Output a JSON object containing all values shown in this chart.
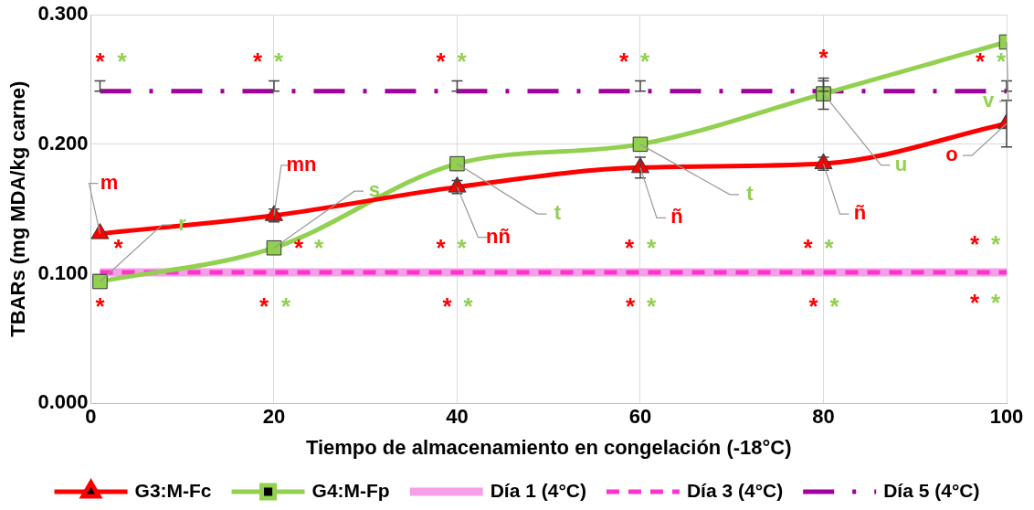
{
  "chart_data": {
    "type": "line",
    "xlabel": "Tiempo de almacenamiento en congelación (-18°C)",
    "ylabel": "TBARs (mg MDA/kg carne)",
    "x": [
      1,
      20,
      40,
      60,
      80,
      100
    ],
    "xlim": [
      0,
      100
    ],
    "xticks": [
      0,
      20,
      40,
      60,
      80,
      100
    ],
    "ylim": [
      0,
      0.3
    ],
    "yticks": [
      {
        "value": 0,
        "label": "0.000"
      },
      {
        "value": 0.1,
        "label": "0.100"
      },
      {
        "value": 0.2,
        "label": "0.200"
      },
      {
        "value": 0.3,
        "label": "0.300"
      }
    ],
    "grid": true,
    "legend": "bottom",
    "series": [
      {
        "name": "G3:M-Fc",
        "color": "#ff0000",
        "marker": "triangle",
        "line_style": "solid",
        "values": [
          0.131,
          0.145,
          0.167,
          0.182,
          0.185,
          0.216
        ],
        "errors": [
          null,
          0.005,
          0.005,
          0.008,
          0.005,
          0.018
        ]
      },
      {
        "name": "G4:M-Fp",
        "color": "#92d050",
        "marker": "square",
        "line_style": "solid",
        "values": [
          0.094,
          0.12,
          0.185,
          0.2,
          0.239,
          0.279
        ],
        "errors": [
          null,
          null,
          null,
          null,
          0.012,
          null
        ]
      },
      {
        "name": "Día 1 (4°C)",
        "color": "#f4a0e8",
        "marker": "none",
        "line_style": "solid",
        "values": [
          0.101,
          0.101,
          0.101,
          0.101,
          0.101,
          0.101
        ]
      },
      {
        "name": "Día 3 (4°C)",
        "color": "#ff33cc",
        "marker": "none",
        "line_style": "dashed",
        "values": [
          0.101,
          0.101,
          0.101,
          0.101,
          0.101,
          0.101
        ]
      },
      {
        "name": "Día 5 (4°C)",
        "color": "#a0009c",
        "marker": "none",
        "line_style": "dashdot",
        "values": [
          0.241,
          0.241,
          0.241,
          0.241,
          0.241,
          0.241
        ],
        "errors": [
          [
            0.241,
            0.249
          ],
          [
            0.241,
            0.249
          ],
          [
            0.241,
            0.249
          ],
          [
            0.241,
            0.249
          ],
          [
            0.241,
            0.249
          ],
          [
            0.241,
            0.249
          ]
        ]
      }
    ],
    "annotations": [
      {
        "text": "m",
        "x": 1,
        "y": 0.131
      },
      {
        "text": "mn",
        "x": 20,
        "y": 0.145
      },
      {
        "text": "nñ",
        "x": 40,
        "y": 0.167
      },
      {
        "text": "ñ",
        "x": 60,
        "y": 0.182
      },
      {
        "text": "ñ",
        "x": 80,
        "y": 0.185
      },
      {
        "text": "o",
        "x": 100,
        "y": 0.216
      },
      {
        "text": "r",
        "x": 1,
        "y": 0.094
      },
      {
        "text": "s",
        "x": 20,
        "y": 0.12
      },
      {
        "text": "t",
        "x": 40,
        "y": 0.185
      },
      {
        "text": "t",
        "x": 60,
        "y": 0.2
      },
      {
        "text": "u",
        "x": 80,
        "y": 0.239
      },
      {
        "text": "v",
        "x": 100,
        "y": 0.279
      },
      "*",
      "*",
      "*",
      "*",
      "*",
      "*",
      "*",
      "*",
      "*",
      "*",
      "*",
      "*",
      "*",
      "*",
      "*",
      "*",
      "*",
      "*",
      "*",
      "*",
      "*",
      "*",
      "*",
      "*",
      "*",
      "*",
      "*",
      "*",
      "*",
      "*",
      "*",
      "*",
      "*"
    ]
  }
}
